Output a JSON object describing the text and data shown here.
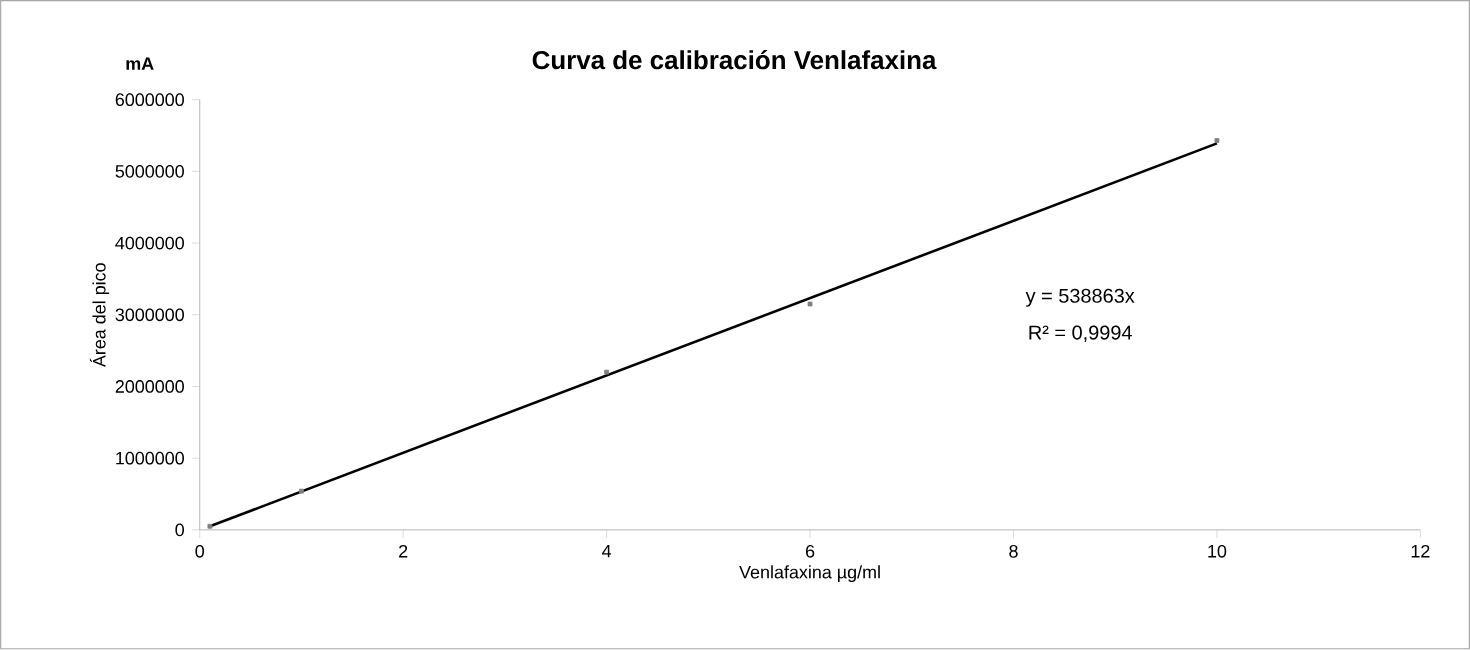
{
  "chart_data": {
    "type": "scatter",
    "title": "Curva de calibración Venlafaxina",
    "xlabel": "Venlafaxina   µg/ml",
    "ylabel": "Área del pico",
    "annotations": [
      "mA",
      "y = 538863x",
      "R² = 0,9994"
    ],
    "series": [
      {
        "color": "#808080",
        "marker": "square",
        "x": [
          0.1,
          1,
          4,
          6,
          10
        ],
        "values": [
          50000,
          540000,
          2200000,
          3150000,
          5430000
        ]
      },
      {
        "type": "line",
        "color": "#000000",
        "marker": "none",
        "line_style": "solid",
        "x": [
          0.1,
          10
        ],
        "values": [
          50000,
          5390000
        ]
      }
    ],
    "xlim": [
      0,
      12
    ],
    "xticks": [
      0,
      2,
      4,
      6,
      8,
      10,
      12
    ],
    "ylim": [
      0,
      6000000
    ],
    "yticks": [
      0,
      1000000,
      2000000,
      3000000,
      4000000,
      5000000,
      6000000
    ],
    "grid": false
  }
}
